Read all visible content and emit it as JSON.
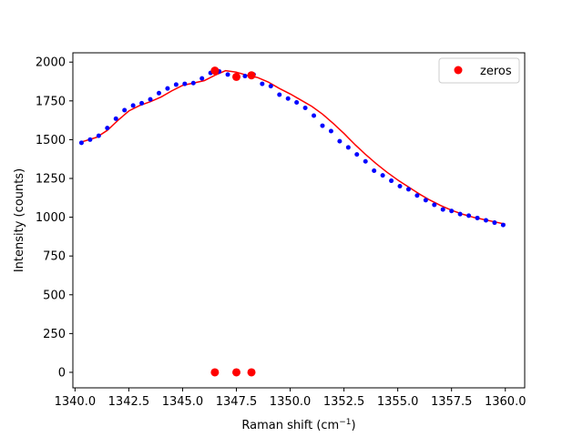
{
  "chart_data": {
    "type": "scatter",
    "xlabel": "Raman shift (cm",
    "xlabel_sup": "−1",
    "xlabel_close": ")",
    "ylabel": "Intensity (counts)",
    "xlim": [
      1339.9,
      1360.9
    ],
    "ylim": [
      -100,
      2060
    ],
    "xticks": [
      1340.0,
      1342.5,
      1345.0,
      1347.5,
      1350.0,
      1352.5,
      1355.0,
      1357.5,
      1360.0
    ],
    "xtick_labels": [
      "1340.0",
      "1342.5",
      "1345.0",
      "1347.5",
      "1350.0",
      "1352.5",
      "1355.0",
      "1357.5",
      "1360.0"
    ],
    "yticks": [
      0,
      250,
      500,
      750,
      1000,
      1250,
      1500,
      1750,
      2000
    ],
    "ytick_labels": [
      "0",
      "250",
      "500",
      "750",
      "1000",
      "1250",
      "1500",
      "1750",
      "2000"
    ],
    "legend_position": "top-right",
    "colors": {
      "data": "#0000ff",
      "fit": "#ff0000",
      "zeros": "#ff0000"
    },
    "series": [
      {
        "kind": "data-points",
        "x": [
          1340.3,
          1340.7,
          1341.1,
          1341.5,
          1341.9,
          1342.3,
          1342.7,
          1343.1,
          1343.5,
          1343.9,
          1344.3,
          1344.7,
          1345.1,
          1345.5,
          1345.9,
          1346.3,
          1346.7,
          1347.1,
          1347.5,
          1347.9,
          1348.3,
          1348.7,
          1349.1,
          1349.5,
          1349.9,
          1350.3,
          1350.7,
          1351.1,
          1351.5,
          1351.9,
          1352.3,
          1352.7,
          1353.1,
          1353.5,
          1353.9,
          1354.3,
          1354.7,
          1355.1,
          1355.5,
          1355.9,
          1356.3,
          1356.7,
          1357.1,
          1357.5,
          1357.9,
          1358.3,
          1358.7,
          1359.1,
          1359.5,
          1359.9
        ],
        "y": [
          1480,
          1500,
          1525,
          1575,
          1635,
          1690,
          1720,
          1735,
          1760,
          1800,
          1830,
          1855,
          1860,
          1865,
          1895,
          1930,
          1940,
          1920,
          1910,
          1910,
          1920,
          1860,
          1845,
          1790,
          1765,
          1740,
          1705,
          1655,
          1590,
          1555,
          1490,
          1450,
          1405,
          1360,
          1300,
          1270,
          1235,
          1200,
          1180,
          1140,
          1110,
          1080,
          1050,
          1040,
          1020,
          1010,
          995,
          980,
          965,
          950
        ]
      },
      {
        "kind": "fit-line",
        "x": [
          1340.3,
          1341.0,
          1341.5,
          1342.0,
          1342.5,
          1343.0,
          1343.5,
          1344.0,
          1344.5,
          1345.0,
          1345.5,
          1346.0,
          1346.5,
          1347.0,
          1347.5,
          1348.0,
          1348.5,
          1349.0,
          1349.5,
          1350.0,
          1350.5,
          1351.0,
          1351.5,
          1352.0,
          1352.5,
          1353.0,
          1353.5,
          1354.0,
          1354.5,
          1355.0,
          1355.5,
          1356.0,
          1356.5,
          1357.0,
          1357.5,
          1358.0,
          1358.5,
          1359.0,
          1359.5,
          1360.0
        ],
        "y": [
          1485,
          1515,
          1560,
          1625,
          1685,
          1720,
          1745,
          1775,
          1815,
          1850,
          1865,
          1880,
          1915,
          1945,
          1935,
          1915,
          1900,
          1870,
          1830,
          1795,
          1755,
          1715,
          1665,
          1605,
          1540,
          1470,
          1405,
          1345,
          1290,
          1240,
          1195,
          1150,
          1110,
          1075,
          1045,
          1020,
          1000,
          985,
          970,
          955
        ]
      },
      {
        "name": "zeros",
        "kind": "zeros",
        "x": [
          1346.5,
          1347.5,
          1348.2
        ],
        "y": [
          0,
          0,
          0
        ],
        "marked_y": [
          1945,
          1905,
          1915
        ]
      }
    ]
  }
}
